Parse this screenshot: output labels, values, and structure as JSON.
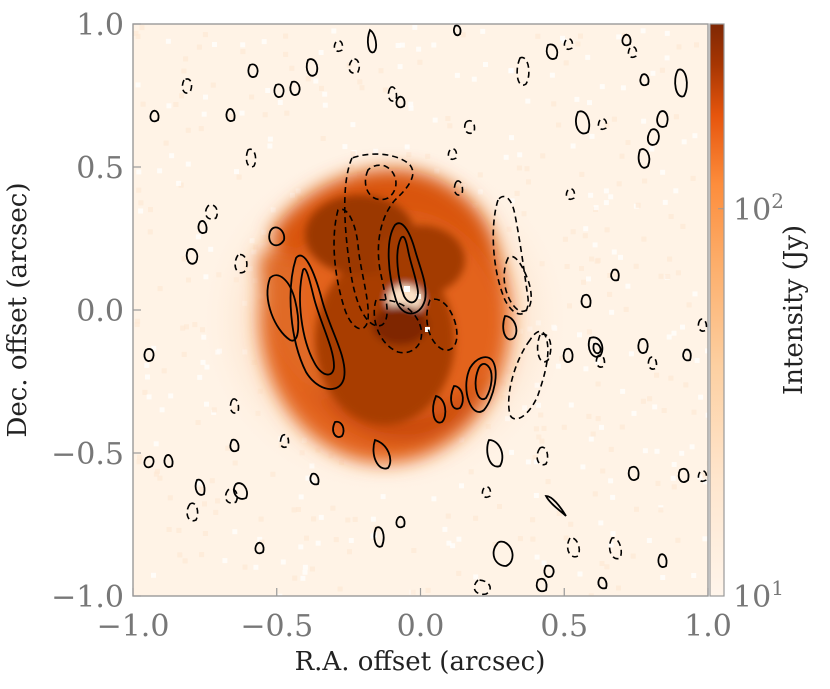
{
  "chart_data": {
    "type": "heatmap",
    "title": "",
    "xlabel": "R.A. offset (arcsec)",
    "ylabel": "Dec. offset (arcsec)",
    "xlim": [
      -1.0,
      1.0
    ],
    "ylim": [
      -1.0,
      1.0
    ],
    "xticks": [
      "−1.0",
      "−0.5",
      "0.0",
      "0.5",
      "1.0"
    ],
    "yticks": [
      "1.0",
      "0.5",
      "0.0",
      "−0.5",
      "−1.0"
    ],
    "colorbar": {
      "label": "Intensity (Jy)",
      "scale": "log",
      "range": [
        10,
        300
      ],
      "ticks": [
        "10",
        "10"
      ],
      "colormap": "Oranges"
    },
    "grid": false,
    "colors": {
      "low": "#fff5eb",
      "mid": "#f16913",
      "high": "#7f2704",
      "contour": "#000000"
    }
  }
}
